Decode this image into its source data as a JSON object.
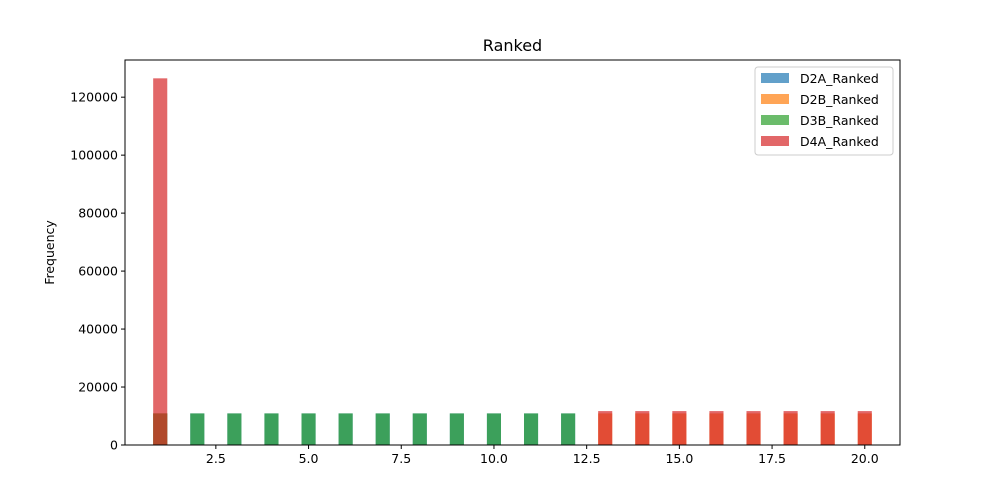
{
  "chart_data": {
    "type": "histogram",
    "title": "Ranked",
    "xlabel": "",
    "ylabel": "Frequency",
    "xlim": [
      0.05,
      20.95
    ],
    "ylim": [
      0,
      132825
    ],
    "x_ticks": [
      "2.5",
      "5.0",
      "7.5",
      "10.0",
      "12.5",
      "15.0",
      "17.5",
      "20.0"
    ],
    "y_ticks": [
      "0",
      "20000",
      "40000",
      "60000",
      "80000",
      "100000",
      "120000"
    ],
    "bin_width": 0.38,
    "legend_position": "top-right",
    "series": [
      {
        "name": "D2A_Ranked",
        "color": "#1f77b4",
        "bins": [
          {
            "x": 1,
            "count": 10900
          },
          {
            "x": 2,
            "count": 10900
          },
          {
            "x": 3,
            "count": 10900
          },
          {
            "x": 4,
            "count": 10900
          },
          {
            "x": 5,
            "count": 10900
          },
          {
            "x": 6,
            "count": 10900
          },
          {
            "x": 7,
            "count": 10900
          },
          {
            "x": 8,
            "count": 10900
          },
          {
            "x": 9,
            "count": 10900
          },
          {
            "x": 10,
            "count": 10900
          },
          {
            "x": 11,
            "count": 10900
          },
          {
            "x": 12,
            "count": 10900
          }
        ]
      },
      {
        "name": "D2B_Ranked",
        "color": "#ff7f0e",
        "bins": [
          {
            "x": 1,
            "count": 10900
          },
          {
            "x": 13,
            "count": 10900
          },
          {
            "x": 14,
            "count": 10900
          },
          {
            "x": 15,
            "count": 10900
          },
          {
            "x": 16,
            "count": 10900
          },
          {
            "x": 17,
            "count": 10900
          },
          {
            "x": 18,
            "count": 10900
          },
          {
            "x": 19,
            "count": 10900
          },
          {
            "x": 20,
            "count": 10900
          }
        ]
      },
      {
        "name": "D3B_Ranked",
        "color": "#2ca02c",
        "bins": [
          {
            "x": 1,
            "count": 10900
          },
          {
            "x": 2,
            "count": 10900
          },
          {
            "x": 3,
            "count": 10900
          },
          {
            "x": 4,
            "count": 10900
          },
          {
            "x": 5,
            "count": 10900
          },
          {
            "x": 6,
            "count": 10900
          },
          {
            "x": 7,
            "count": 10900
          },
          {
            "x": 8,
            "count": 10900
          },
          {
            "x": 9,
            "count": 10900
          },
          {
            "x": 10,
            "count": 10900
          },
          {
            "x": 11,
            "count": 10900
          },
          {
            "x": 12,
            "count": 10900
          }
        ]
      },
      {
        "name": "D4A_Ranked",
        "color": "#d62728",
        "bins": [
          {
            "x": 1,
            "count": 126500
          },
          {
            "x": 13,
            "count": 11700
          },
          {
            "x": 14,
            "count": 11700
          },
          {
            "x": 15,
            "count": 11700
          },
          {
            "x": 16,
            "count": 11700
          },
          {
            "x": 17,
            "count": 11700
          },
          {
            "x": 18,
            "count": 11700
          },
          {
            "x": 19,
            "count": 11700
          },
          {
            "x": 20,
            "count": 11700
          }
        ]
      }
    ]
  }
}
